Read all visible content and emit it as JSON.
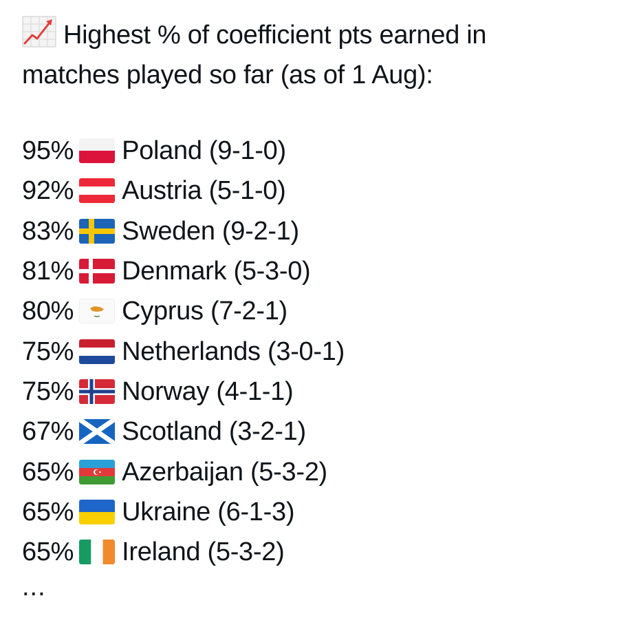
{
  "post": {
    "icon": "chart-increasing-icon",
    "headline_line1": "Highest % of coefficient pts earned in",
    "headline_line2": "matches played so far (as of 1 Aug):",
    "ellipsis": "..."
  },
  "rows": [
    {
      "pct": "95%",
      "country": "Poland (9-1-0)",
      "flag": "poland-flag-icon"
    },
    {
      "pct": "92%",
      "country": "Austria (5-1-0)",
      "flag": "austria-flag-icon"
    },
    {
      "pct": "83%",
      "country": "Sweden (9-2-1)",
      "flag": "sweden-flag-icon"
    },
    {
      "pct": "81%",
      "country": "Denmark (5-3-0)",
      "flag": "denmark-flag-icon"
    },
    {
      "pct": "80%",
      "country": "Cyprus (7-2-1)",
      "flag": "cyprus-flag-icon"
    },
    {
      "pct": "75%",
      "country": "Netherlands (3-0-1)",
      "flag": "netherlands-flag-icon"
    },
    {
      "pct": "75%",
      "country": "Norway (4-1-1)",
      "flag": "norway-flag-icon"
    },
    {
      "pct": "67%",
      "country": "Scotland (3-2-1)",
      "flag": "scotland-flag-icon"
    },
    {
      "pct": "65%",
      "country": "Azerbaijan (5-3-2)",
      "flag": "azerbaijan-flag-icon"
    },
    {
      "pct": "65%",
      "country": "Ukraine (6-1-3)",
      "flag": "ukraine-flag-icon"
    },
    {
      "pct": "65%",
      "country": "Ireland (5-3-2)",
      "flag": "ireland-flag-icon"
    }
  ]
}
